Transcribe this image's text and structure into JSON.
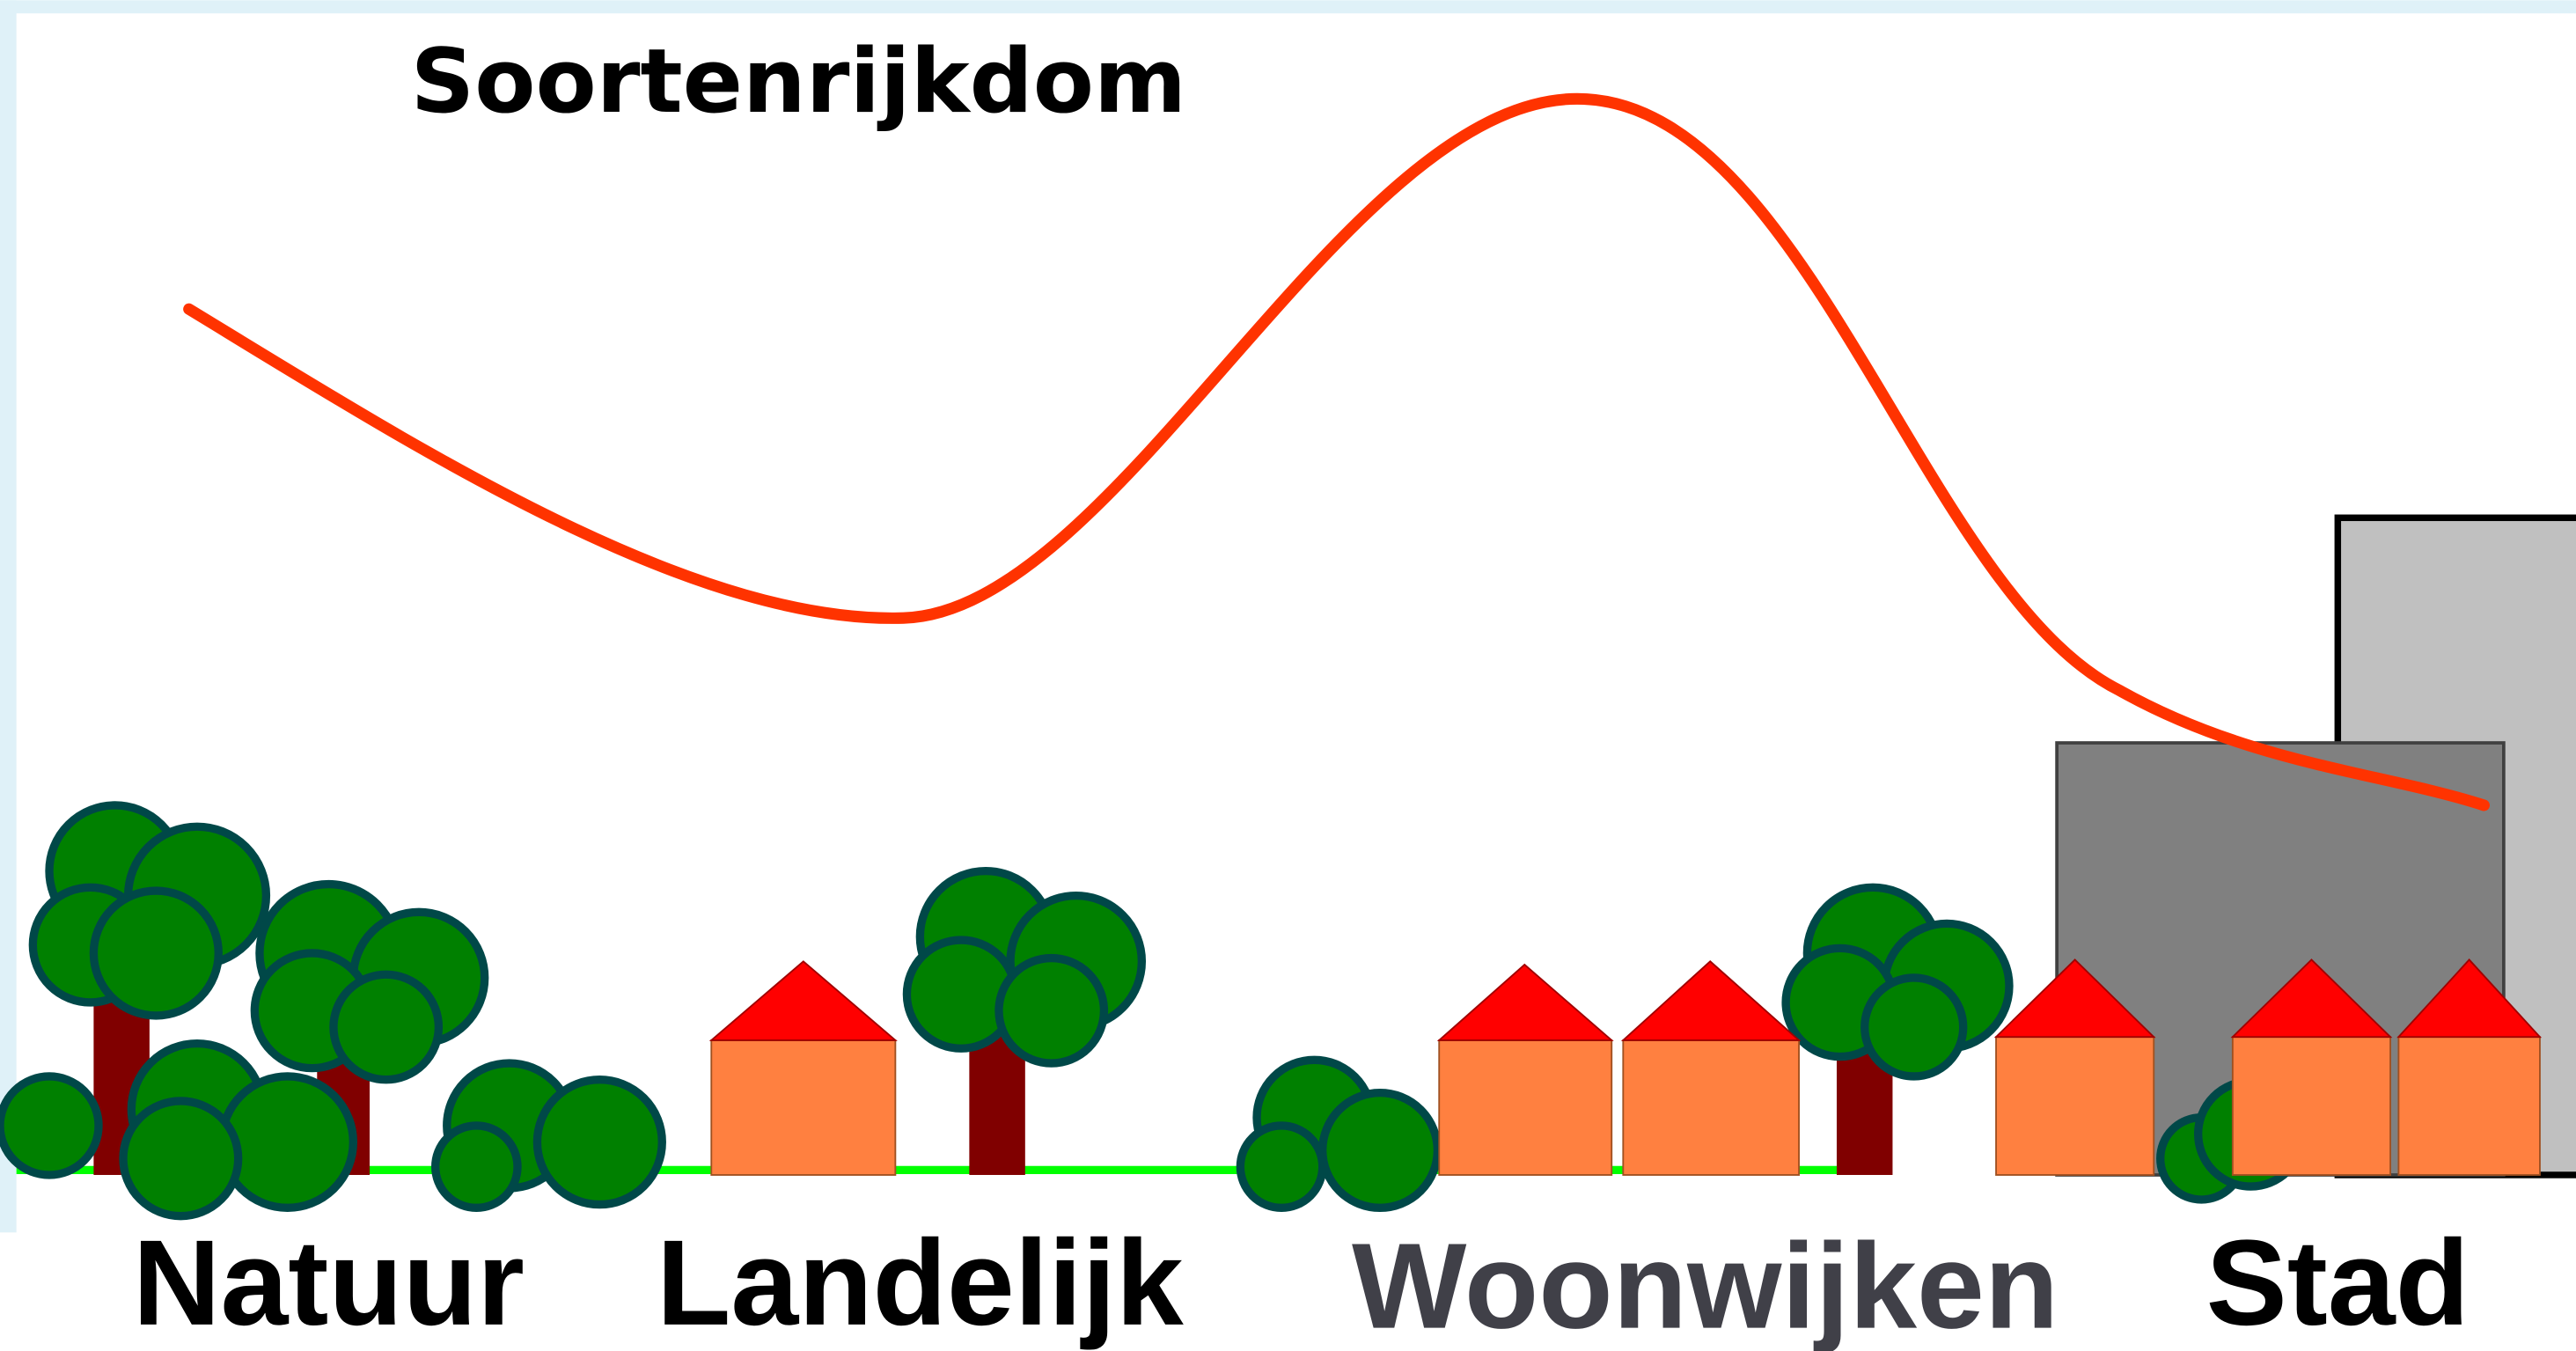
{
  "title": "Soortenrijkdom",
  "labels": [
    "Natuur",
    "Landelijk",
    "Woonwijken",
    "Stad"
  ]
}
